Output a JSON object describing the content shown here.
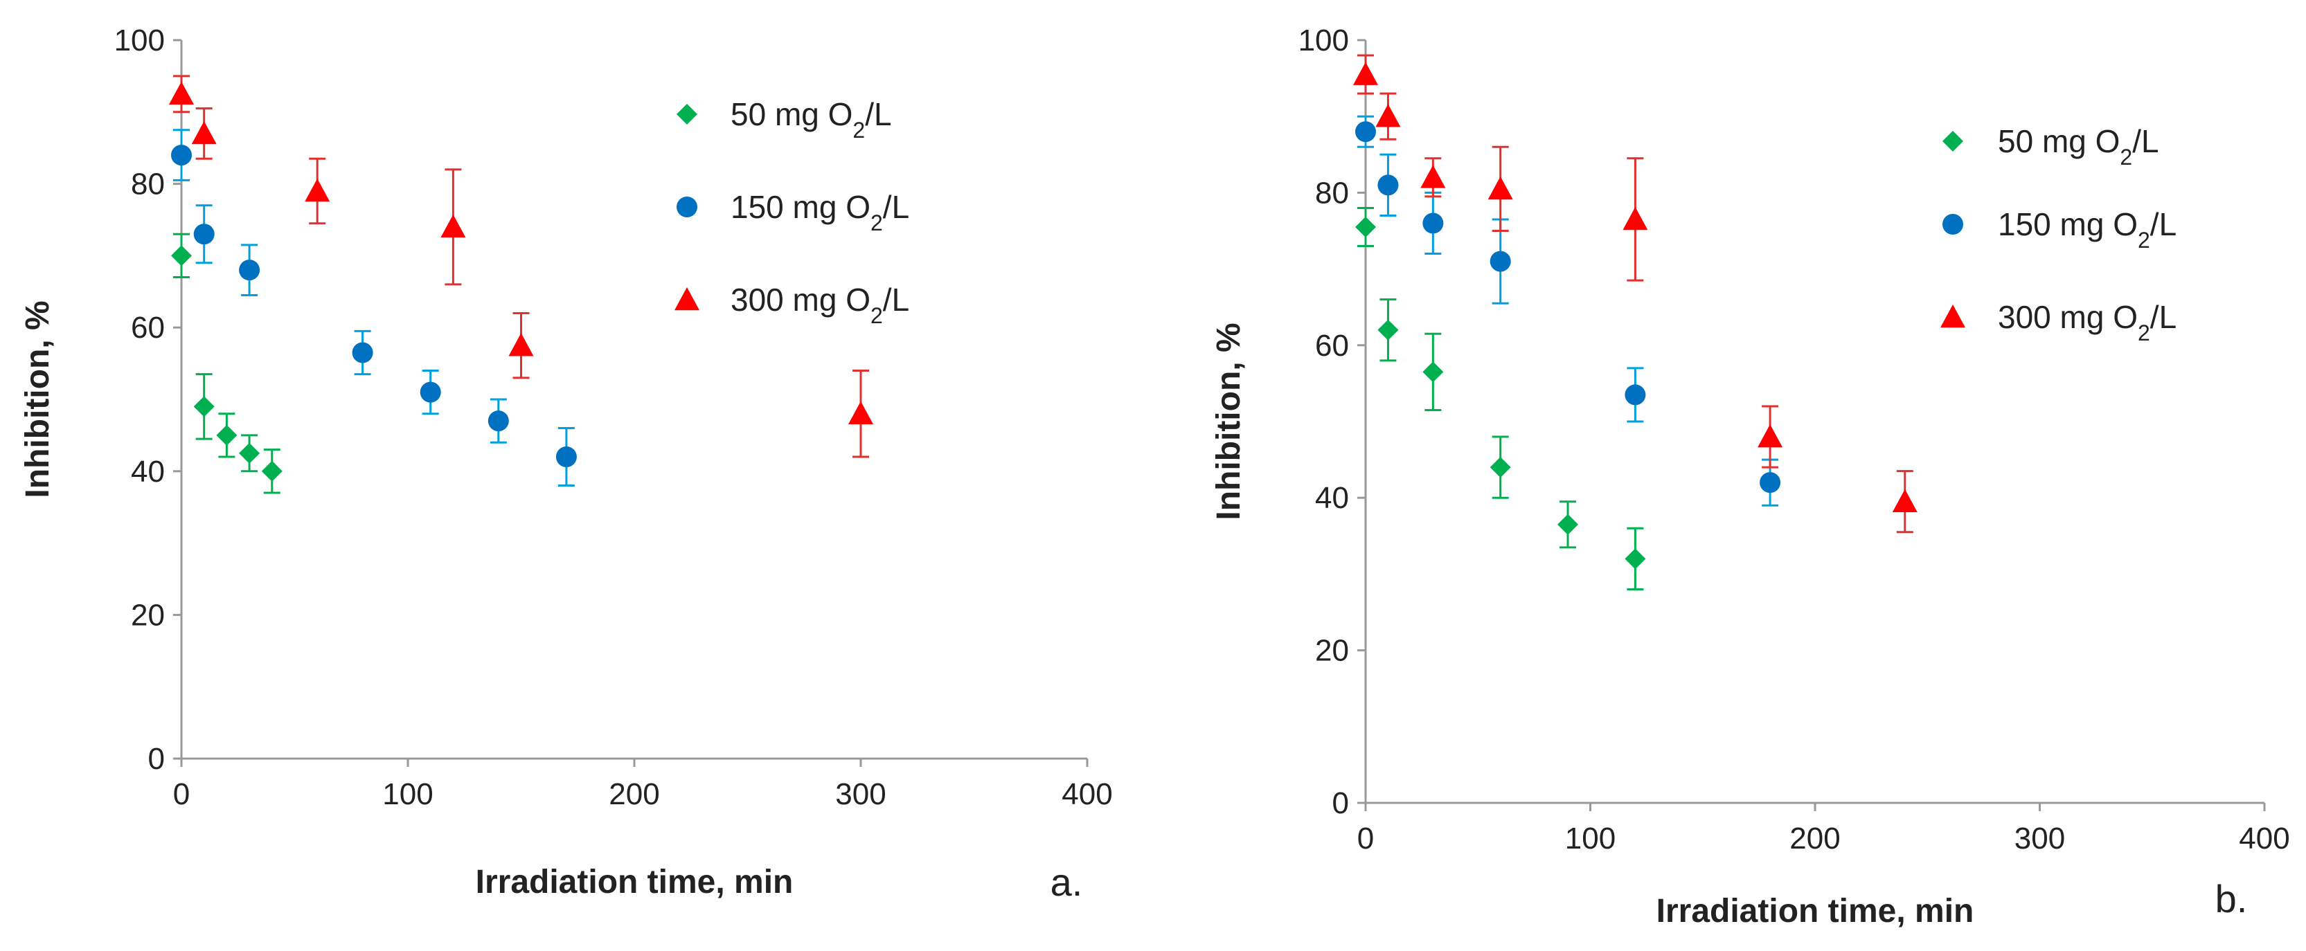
{
  "chart_data": [
    {
      "type": "scatter",
      "panel_label": "a.",
      "xlabel": "Irradiation time, min",
      "ylabel": "Inhibition, %",
      "xlim": [
        0,
        400
      ],
      "ylim": [
        0,
        100
      ],
      "xticks": [
        "0",
        "100",
        "200",
        "300",
        "400"
      ],
      "yticks": [
        "0",
        "20",
        "40",
        "60",
        "80",
        "100"
      ],
      "legend_position": "top-right",
      "series": [
        {
          "name": "50 mg O2/L",
          "legend_prefix": "50 mg O",
          "legend_sub": "2",
          "legend_suffix": "/L",
          "marker": "diamond",
          "color": "#00b050",
          "errcolor": "#00b050",
          "points": [
            {
              "x": 0,
              "y": 70,
              "err": 3
            },
            {
              "x": 10,
              "y": 49,
              "err": 4.5
            },
            {
              "x": 20,
              "y": 45,
              "err": 3
            },
            {
              "x": 30,
              "y": 42.5,
              "err": 2.5
            },
            {
              "x": 40,
              "y": 40,
              "err": 3
            }
          ]
        },
        {
          "name": "150 mg O2/L",
          "legend_prefix": "150 mg O",
          "legend_sub": "2",
          "legend_suffix": "/L",
          "marker": "circle",
          "color": "#0070c0",
          "errcolor": "#00a0e0",
          "points": [
            {
              "x": 0,
              "y": 84,
              "err": 3.5
            },
            {
              "x": 10,
              "y": 73,
              "err": 4
            },
            {
              "x": 30,
              "y": 68,
              "err": 3.5
            },
            {
              "x": 80,
              "y": 56.5,
              "err": 3
            },
            {
              "x": 110,
              "y": 51,
              "err": 3
            },
            {
              "x": 140,
              "y": 47,
              "err": 3
            },
            {
              "x": 170,
              "y": 42,
              "err": 4
            }
          ]
        },
        {
          "name": "300 mg O2/L",
          "legend_prefix": "300 mg O",
          "legend_sub": "2",
          "legend_suffix": "/L",
          "marker": "triangle",
          "color": "#ff0000",
          "errcolor": "#e03030",
          "points": [
            {
              "x": 0,
              "y": 92.5,
              "err": 2.5
            },
            {
              "x": 10,
              "y": 87,
              "err": 3.5
            },
            {
              "x": 60,
              "y": 79,
              "err": 4.5
            },
            {
              "x": 120,
              "y": 74,
              "err": 8
            },
            {
              "x": 150,
              "y": 57.5,
              "err": 4.5
            },
            {
              "x": 300,
              "y": 48,
              "err": 6
            }
          ]
        }
      ]
    },
    {
      "type": "scatter",
      "panel_label": "b.",
      "xlabel": "Irradiation time, min",
      "ylabel": "Inhibition, %",
      "xlim": [
        0,
        400
      ],
      "ylim": [
        0,
        100
      ],
      "xticks": [
        "0",
        "100",
        "200",
        "300",
        "400"
      ],
      "yticks": [
        "0",
        "20",
        "40",
        "60",
        "80",
        "100"
      ],
      "legend_position": "top-right",
      "series": [
        {
          "name": "50 mg O2/L",
          "legend_prefix": "50 mg O",
          "legend_sub": "2",
          "legend_suffix": "/L",
          "marker": "diamond",
          "color": "#00b050",
          "errcolor": "#00b050",
          "points": [
            {
              "x": 0,
              "y": 75.5,
              "err": 2.5
            },
            {
              "x": 10,
              "y": 62,
              "err": 4
            },
            {
              "x": 30,
              "y": 56.5,
              "err": 5
            },
            {
              "x": 60,
              "y": 44,
              "err": 4
            },
            {
              "x": 90,
              "y": 36.5,
              "err": 3
            },
            {
              "x": 120,
              "y": 32,
              "err": 4
            }
          ]
        },
        {
          "name": "150 mg O2/L",
          "legend_prefix": "150 mg O",
          "legend_sub": "2",
          "legend_suffix": "/L",
          "marker": "circle",
          "color": "#0070c0",
          "errcolor": "#00a0e0",
          "points": [
            {
              "x": 0,
              "y": 88,
              "err": 2
            },
            {
              "x": 10,
              "y": 81,
              "err": 4
            },
            {
              "x": 30,
              "y": 76,
              "err": 4
            },
            {
              "x": 60,
              "y": 71,
              "err": 5.5
            },
            {
              "x": 120,
              "y": 53.5,
              "err": 3.5
            },
            {
              "x": 180,
              "y": 42,
              "err": 3
            }
          ]
        },
        {
          "name": "300 mg O2/L",
          "legend_prefix": "300 mg O",
          "legend_sub": "2",
          "legend_suffix": "/L",
          "marker": "triangle",
          "color": "#ff0000",
          "errcolor": "#e03030",
          "points": [
            {
              "x": 0,
              "y": 95.5,
              "err": 2.5
            },
            {
              "x": 10,
              "y": 90,
              "err": 3
            },
            {
              "x": 30,
              "y": 82,
              "err": 2.5
            },
            {
              "x": 60,
              "y": 80.5,
              "err": 5.5
            },
            {
              "x": 120,
              "y": 76.5,
              "err": 8
            },
            {
              "x": 180,
              "y": 48,
              "err": 4
            },
            {
              "x": 240,
              "y": 39.5,
              "err": 4
            }
          ]
        }
      ]
    }
  ]
}
